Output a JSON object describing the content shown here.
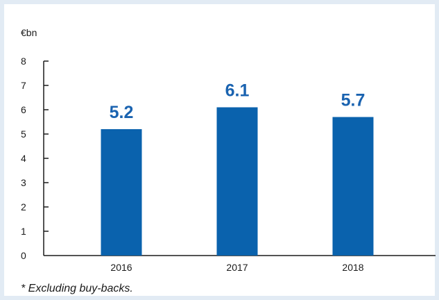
{
  "chart_data": {
    "type": "bar",
    "unit": "€bn",
    "categories": [
      "2016",
      "2017",
      "2018"
    ],
    "values": [
      5.2,
      6.1,
      5.7
    ],
    "data_labels": [
      "5.2",
      "6.1",
      "5.7"
    ],
    "yticks": [
      "0",
      "1",
      "2",
      "3",
      "4",
      "5",
      "6",
      "7",
      "8"
    ],
    "ylim": [
      0,
      8
    ],
    "grid": false,
    "bar_color": "#0a62ad",
    "label_color": "#1a63b0"
  },
  "footnote": "* Excluding buy-backs."
}
